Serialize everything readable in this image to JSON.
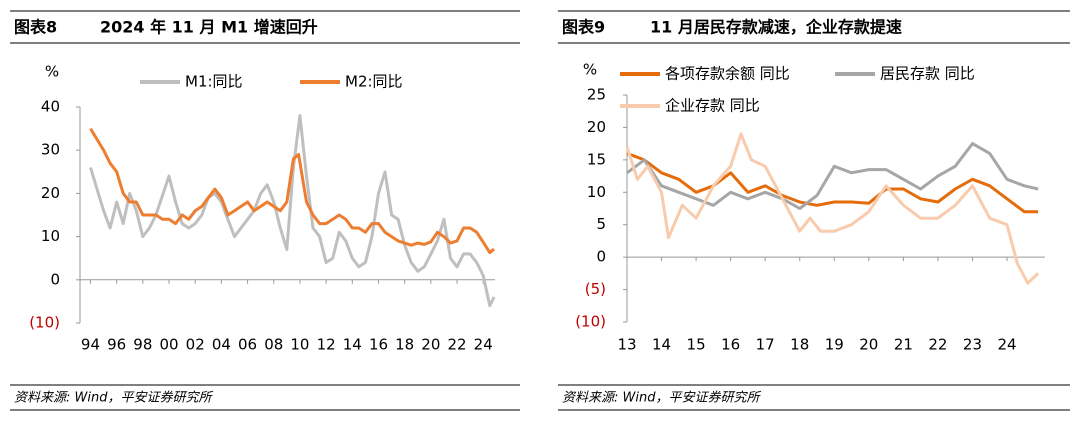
{
  "chart_data": [
    {
      "type": "line",
      "figure_label": "图表8",
      "title": "2024 年 11 月 M1 增速回升",
      "source": "资料来源: Wind，平安证券研究所",
      "y_label": "%",
      "negative_tick_color": "#c00000",
      "xlim": [
        1993.2,
        2024.9
      ],
      "xticks": [
        {
          "value": 1994,
          "label": "94"
        },
        {
          "value": 1996,
          "label": "96"
        },
        {
          "value": 1998,
          "label": "98"
        },
        {
          "value": 2000,
          "label": "00"
        },
        {
          "value": 2002,
          "label": "02"
        },
        {
          "value": 2004,
          "label": "04"
        },
        {
          "value": 2006,
          "label": "06"
        },
        {
          "value": 2008,
          "label": "08"
        },
        {
          "value": 2010,
          "label": "10"
        },
        {
          "value": 2012,
          "label": "12"
        },
        {
          "value": 2014,
          "label": "14"
        },
        {
          "value": 2016,
          "label": "16"
        },
        {
          "value": 2018,
          "label": "18"
        },
        {
          "value": 2020,
          "label": "20"
        },
        {
          "value": 2022,
          "label": "22"
        },
        {
          "value": 2024,
          "label": "24"
        }
      ],
      "ylim": [
        -10,
        40
      ],
      "yticks": [
        {
          "value": -10,
          "label": "(10)"
        },
        0,
        10,
        20,
        30,
        40
      ],
      "series": [
        {
          "name": "M1:同比",
          "color": "#bfbfbf",
          "x": [
            1994,
            1995,
            1995.5,
            1996,
            1996.5,
            1997,
            1997.5,
            1998,
            1998.5,
            1999,
            2000,
            2000.5,
            2001,
            2001.5,
            2002,
            2002.5,
            2003,
            2003.5,
            2004,
            2004.5,
            2005,
            2005.5,
            2006,
            2006.5,
            2007,
            2007.5,
            2008,
            2008.5,
            2009,
            2009.5,
            2010,
            2010.5,
            2011,
            2011.5,
            2012,
            2012.5,
            2013,
            2013.5,
            2014,
            2014.5,
            2015,
            2015.5,
            2016,
            2016.5,
            2017,
            2017.5,
            2018,
            2018.5,
            2019,
            2019.5,
            2020,
            2020.5,
            2021,
            2021.5,
            2022,
            2022.5,
            2023,
            2023.5,
            2024,
            2024.5,
            2024.83
          ],
          "values": [
            26,
            16,
            12,
            18,
            13,
            20,
            16,
            10,
            12,
            15,
            24,
            18,
            13,
            12,
            13,
            15,
            19,
            20,
            18,
            14,
            10,
            12,
            14,
            16,
            20,
            22,
            18,
            12,
            7,
            26,
            38,
            24,
            12,
            10,
            4,
            5,
            11,
            9,
            5,
            3,
            4,
            10,
            20,
            25,
            15,
            14,
            8,
            4,
            2,
            3,
            6,
            9,
            14,
            5,
            3,
            6,
            6,
            4,
            1,
            -6,
            -4
          ]
        },
        {
          "name": "M2:同比",
          "color": "#ed7d31",
          "x": [
            1994,
            1995,
            1995.5,
            1996,
            1996.5,
            1997,
            1997.5,
            1998,
            1998.5,
            1999,
            1999.5,
            2000,
            2000.5,
            2001,
            2001.5,
            2002,
            2002.5,
            2003,
            2003.5,
            2004,
            2004.5,
            2005,
            2005.5,
            2006,
            2006.5,
            2007,
            2007.5,
            2008,
            2008.5,
            2009,
            2009.5,
            2009.9,
            2010.5,
            2011,
            2011.5,
            2012,
            2012.5,
            2013,
            2013.5,
            2014,
            2014.5,
            2015,
            2015.5,
            2016,
            2016.5,
            2017,
            2017.5,
            2018,
            2018.5,
            2019,
            2019.5,
            2020,
            2020.5,
            2021,
            2021.5,
            2022,
            2022.5,
            2023,
            2023.5,
            2024,
            2024.5,
            2024.83
          ],
          "values": [
            35,
            30,
            27,
            25,
            20,
            18,
            18,
            15,
            15,
            15,
            14,
            14,
            13,
            15,
            14,
            16,
            17,
            19,
            21,
            19,
            15,
            16,
            17,
            18,
            16,
            17,
            18,
            17,
            16,
            18,
            28,
            29,
            18,
            15,
            13,
            13,
            14,
            15,
            14,
            12,
            12,
            11,
            13,
            13,
            11,
            10,
            9,
            8.5,
            8,
            8.5,
            8.2,
            8.8,
            11,
            10,
            8.5,
            9,
            12,
            12,
            11,
            8.7,
            6.3,
            7.1
          ]
        }
      ]
    },
    {
      "type": "line",
      "figure_label": "图表9",
      "title": "11 月居民存款减速，企业存款提速",
      "source": "资料来源: Wind，平安证券研究所",
      "y_label": "%",
      "negative_tick_color": "#c00000",
      "xlim": [
        2013,
        2025.1
      ],
      "xticks": [
        {
          "value": 2013,
          "label": "13"
        },
        {
          "value": 2014,
          "label": "14"
        },
        {
          "value": 2015,
          "label": "15"
        },
        {
          "value": 2016,
          "label": "16"
        },
        {
          "value": 2017,
          "label": "17"
        },
        {
          "value": 2018,
          "label": "18"
        },
        {
          "value": 2019,
          "label": "19"
        },
        {
          "value": 2020,
          "label": "20"
        },
        {
          "value": 2021,
          "label": "21"
        },
        {
          "value": 2022,
          "label": "22"
        },
        {
          "value": 2023,
          "label": "23"
        },
        {
          "value": 2024,
          "label": "24"
        }
      ],
      "ylim": [
        -10,
        25
      ],
      "yticks": [
        {
          "value": -10,
          "label": "(10)"
        },
        {
          "value": -5,
          "label": "(5)"
        },
        0,
        5,
        10,
        15,
        20,
        25
      ],
      "series": [
        {
          "name": "各项存款余额 同比",
          "color": "#e46c0a",
          "x": [
            2013,
            2013.5,
            2014,
            2014.5,
            2015,
            2015.5,
            2016,
            2016.5,
            2017,
            2017.5,
            2018,
            2018.5,
            2019,
            2019.5,
            2020,
            2020.5,
            2021,
            2021.5,
            2022,
            2022.5,
            2023,
            2023.5,
            2024,
            2024.5,
            2024.9
          ],
          "values": [
            16,
            15,
            13,
            12,
            10,
            11,
            13,
            10,
            11,
            9.5,
            8.5,
            8,
            8.5,
            8.5,
            8.3,
            10.5,
            10.5,
            9,
            8.5,
            10.5,
            12,
            11,
            9,
            7,
            7
          ]
        },
        {
          "name": "居民存款 同比",
          "color": "#a6a6a6",
          "x": [
            2013,
            2013.5,
            2014,
            2014.5,
            2015,
            2015.5,
            2016,
            2016.5,
            2017,
            2017.5,
            2018,
            2018.5,
            2019,
            2019.5,
            2020,
            2020.5,
            2021,
            2021.5,
            2022,
            2022.5,
            2023,
            2023.5,
            2024,
            2024.5,
            2024.9
          ],
          "values": [
            13,
            15,
            11,
            10,
            9,
            8,
            10,
            9,
            10,
            9,
            7.5,
            9.5,
            14,
            13,
            13.5,
            13.5,
            12,
            10.5,
            12.5,
            14,
            17.5,
            16,
            12,
            11,
            10.5
          ]
        },
        {
          "name": "企业存款 同比",
          "color": "#f8cbad",
          "x": [
            2013,
            2013.3,
            2013.6,
            2014,
            2014.2,
            2014.6,
            2015,
            2015.5,
            2016,
            2016.3,
            2016.6,
            2017,
            2017.5,
            2018,
            2018.3,
            2018.6,
            2019,
            2019.5,
            2020,
            2020.5,
            2021,
            2021.5,
            2022,
            2022.5,
            2023,
            2023.5,
            2024,
            2024.3,
            2024.6,
            2024.9
          ],
          "values": [
            17,
            12,
            14,
            10,
            3,
            8,
            6,
            11,
            14,
            19,
            15,
            14,
            9,
            4,
            6,
            4,
            4,
            5,
            7,
            11,
            8,
            6,
            6,
            8,
            11,
            6,
            5,
            -1,
            -4,
            -2.5
          ]
        }
      ]
    }
  ]
}
